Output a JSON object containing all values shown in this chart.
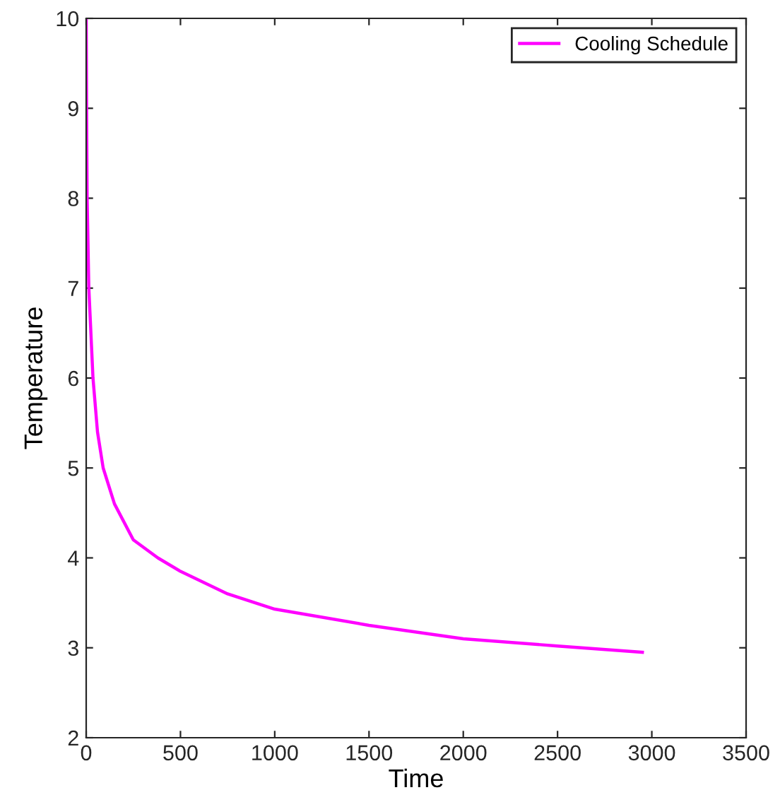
{
  "chart_data": {
    "type": "line",
    "xlabel": "Time",
    "ylabel": "Temperature",
    "xlim": [
      0,
      3500
    ],
    "ylim": [
      2,
      10
    ],
    "xticks": [
      0,
      500,
      1000,
      1500,
      2000,
      2500,
      3000,
      3500
    ],
    "yticks": [
      2,
      3,
      4,
      5,
      6,
      7,
      8,
      9,
      10
    ],
    "grid": false,
    "legend": "top right",
    "series": [
      {
        "name": "Cooling Schedule",
        "color": "#ff00ff",
        "x": [
          0,
          2,
          5,
          14,
          36,
          60,
          90,
          150,
          250,
          380,
          500,
          750,
          1000,
          1500,
          2000,
          2500,
          2950
        ],
        "values": [
          10,
          9,
          8,
          7,
          6,
          5.4,
          5,
          4.6,
          4.2,
          4,
          3.85,
          3.6,
          3.43,
          3.25,
          3.1,
          3.02,
          2.95
        ]
      }
    ]
  }
}
